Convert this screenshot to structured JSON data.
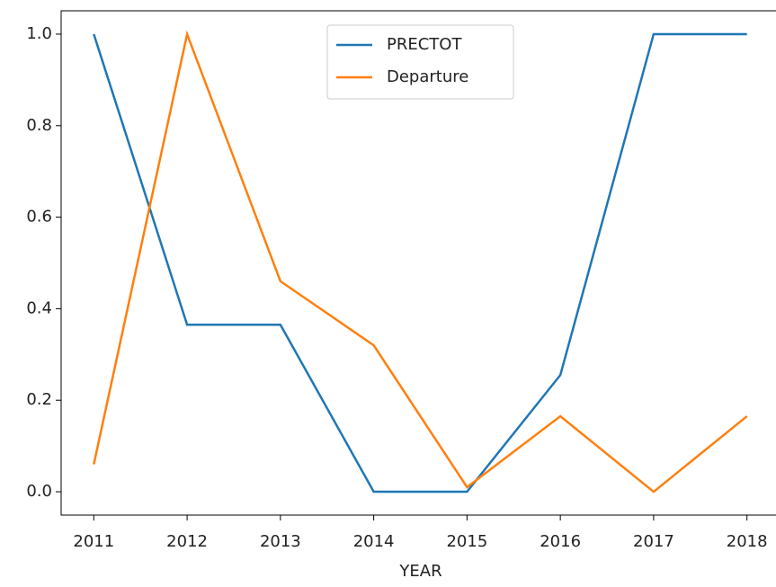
{
  "chart_data": {
    "type": "line",
    "x_label": "YEAR",
    "x": [
      2011,
      2012,
      2013,
      2014,
      2015,
      2016,
      2017,
      2018
    ],
    "series": [
      {
        "name": "PRECTOT",
        "color": "#1f77b4",
        "values": [
          1.0,
          0.365,
          0.365,
          0.0,
          0.0,
          0.255,
          1.0,
          1.0
        ]
      },
      {
        "name": "Departure",
        "color": "#ff7f0e",
        "values": [
          0.06,
          1.0,
          0.46,
          0.32,
          0.01,
          0.165,
          0.0,
          0.165
        ]
      }
    ],
    "xlim": [
      2010.65,
      2018.35
    ],
    "xticks": [
      2011,
      2012,
      2013,
      2014,
      2015,
      2016,
      2017,
      2018
    ],
    "ylim": [
      -0.051,
      1.051
    ],
    "yticks": [
      {
        "value": 0,
        "label": "0.0"
      },
      0.2,
      0.4,
      0.6,
      0.8,
      {
        "value": 1,
        "label": "1.0"
      }
    ],
    "legend": "upper center",
    "grid": false
  }
}
